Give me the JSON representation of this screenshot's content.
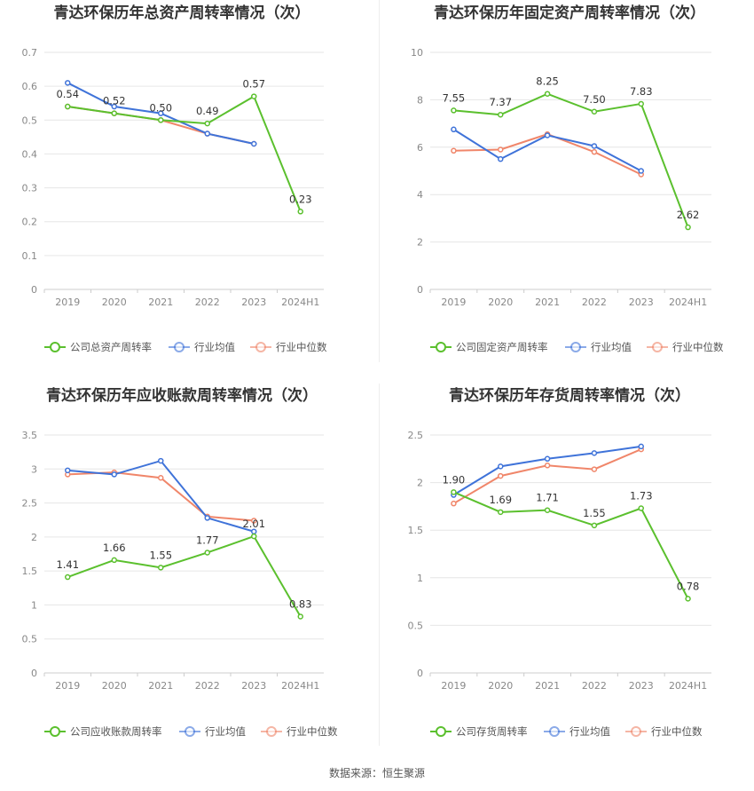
{
  "source_text": "数据来源：恒生聚源",
  "colors": {
    "company": "#5bc02e",
    "industry_avg": "#3f73d9",
    "industry_median": "#f0866a",
    "grid": "#e6e6e6",
    "axis_text": "#888888",
    "title_text": "#333333"
  },
  "chart_data": [
    {
      "type": "line",
      "title": "青达环保历年总资产周转率情况（次）",
      "categories": [
        "2019",
        "2020",
        "2021",
        "2022",
        "2023",
        "2024H1"
      ],
      "ylim": [
        0,
        0.7
      ],
      "yticks": [
        "0",
        "0.1",
        "0.2",
        "0.3",
        "0.4",
        "0.5",
        "0.6",
        "0.7"
      ],
      "ytick_values": [
        0,
        0.1,
        0.2,
        0.3,
        0.4,
        0.5,
        0.6,
        0.7
      ],
      "series": [
        {
          "name": "公司总资产周转率",
          "color_key": "company",
          "values": [
            0.54,
            0.52,
            0.5,
            0.49,
            0.57,
            0.23
          ],
          "labels": [
            "0.54",
            "0.52",
            "0.50",
            "0.49",
            "0.57",
            "0.23"
          ]
        },
        {
          "name": "行业均值",
          "color_key": "industry_avg",
          "values": [
            0.61,
            0.54,
            0.52,
            0.46,
            0.43,
            null
          ]
        },
        {
          "name": "行业中位数",
          "color_key": "industry_median",
          "values": [
            0.54,
            0.52,
            0.5,
            0.46,
            0.43,
            null
          ]
        }
      ]
    },
    {
      "type": "line",
      "title": "青达环保历年固定资产周转率情况（次）",
      "categories": [
        "2019",
        "2020",
        "2021",
        "2022",
        "2023",
        "2024H1"
      ],
      "ylim": [
        0,
        10
      ],
      "yticks": [
        "0",
        "2",
        "4",
        "6",
        "8",
        "10"
      ],
      "ytick_values": [
        0,
        2,
        4,
        6,
        8,
        10
      ],
      "series": [
        {
          "name": "公司固定资产周转率",
          "color_key": "company",
          "values": [
            7.55,
            7.37,
            8.25,
            7.5,
            7.83,
            2.62
          ],
          "labels": [
            "7.55",
            "7.37",
            "8.25",
            "7.50",
            "7.83",
            "2.62"
          ]
        },
        {
          "name": "行业均值",
          "color_key": "industry_avg",
          "values": [
            6.75,
            5.5,
            6.5,
            6.05,
            5.0,
            null
          ]
        },
        {
          "name": "行业中位数",
          "color_key": "industry_median",
          "values": [
            5.85,
            5.9,
            6.55,
            5.8,
            4.85,
            null
          ]
        }
      ]
    },
    {
      "type": "line",
      "title": "青达环保历年应收账款周转率情况（次）",
      "categories": [
        "2019",
        "2020",
        "2021",
        "2022",
        "2023",
        "2024H1"
      ],
      "ylim": [
        0,
        3.5
      ],
      "yticks": [
        "0",
        "0.5",
        "1",
        "1.5",
        "2",
        "2.5",
        "3",
        "3.5"
      ],
      "ytick_values": [
        0,
        0.5,
        1,
        1.5,
        2,
        2.5,
        3,
        3.5
      ],
      "series": [
        {
          "name": "公司应收账款周转率",
          "color_key": "company",
          "values": [
            1.41,
            1.66,
            1.55,
            1.77,
            2.01,
            0.83
          ],
          "labels": [
            "1.41",
            "1.66",
            "1.55",
            "1.77",
            "2.01",
            "0.83"
          ]
        },
        {
          "name": "行业均值",
          "color_key": "industry_avg",
          "values": [
            2.98,
            2.92,
            3.12,
            2.28,
            2.08,
            null
          ]
        },
        {
          "name": "行业中位数",
          "color_key": "industry_median",
          "values": [
            2.92,
            2.95,
            2.87,
            2.3,
            2.24,
            null
          ]
        }
      ]
    },
    {
      "type": "line",
      "title": "青达环保历年存货周转率情况（次）",
      "categories": [
        "2019",
        "2020",
        "2021",
        "2022",
        "2023",
        "2024H1"
      ],
      "ylim": [
        0,
        2.5
      ],
      "yticks": [
        "0",
        "0.5",
        "1",
        "1.5",
        "2",
        "2.5"
      ],
      "ytick_values": [
        0,
        0.5,
        1,
        1.5,
        2,
        2.5
      ],
      "series": [
        {
          "name": "公司存货周转率",
          "color_key": "company",
          "values": [
            1.9,
            1.69,
            1.71,
            1.55,
            1.73,
            0.78
          ],
          "labels": [
            "1.90",
            "1.69",
            "1.71",
            "1.55",
            "1.73",
            "0.78"
          ]
        },
        {
          "name": "行业均值",
          "color_key": "industry_avg",
          "values": [
            1.87,
            2.17,
            2.25,
            2.31,
            2.38,
            null
          ]
        },
        {
          "name": "行业中位数",
          "color_key": "industry_median",
          "values": [
            1.78,
            2.07,
            2.18,
            2.14,
            2.35,
            null
          ]
        }
      ]
    }
  ]
}
